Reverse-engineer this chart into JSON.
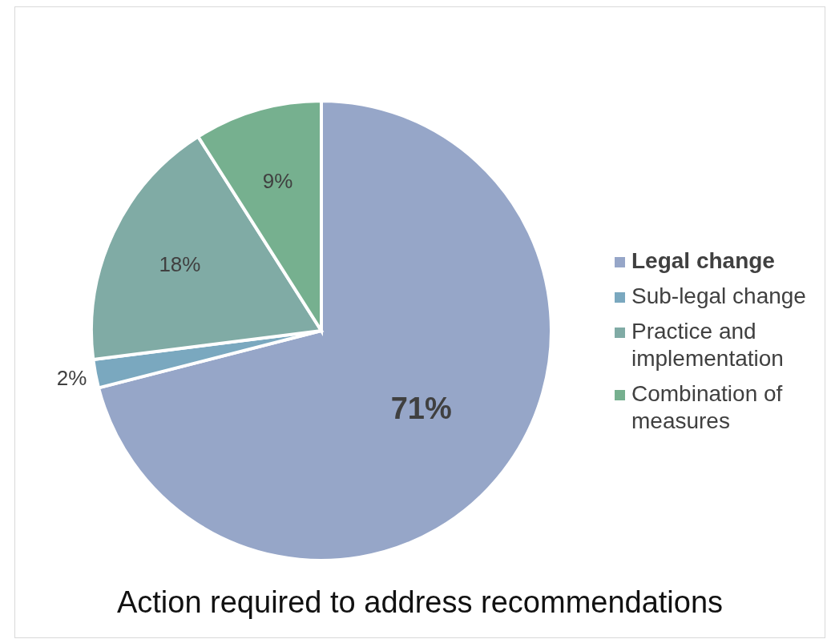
{
  "chart_data": {
    "type": "pie",
    "title": "Action required to address recommendations",
    "categories": [
      "Legal change",
      "Sub-legal change",
      "Practice and implementation",
      "Combination of measures"
    ],
    "values": [
      71,
      2,
      18,
      9
    ],
    "value_labels": [
      "71%",
      "2%",
      "18%",
      "9%"
    ],
    "colors": [
      "#96a6c8",
      "#7aa8bf",
      "#80aba5",
      "#76b08f"
    ],
    "legend": "right"
  }
}
